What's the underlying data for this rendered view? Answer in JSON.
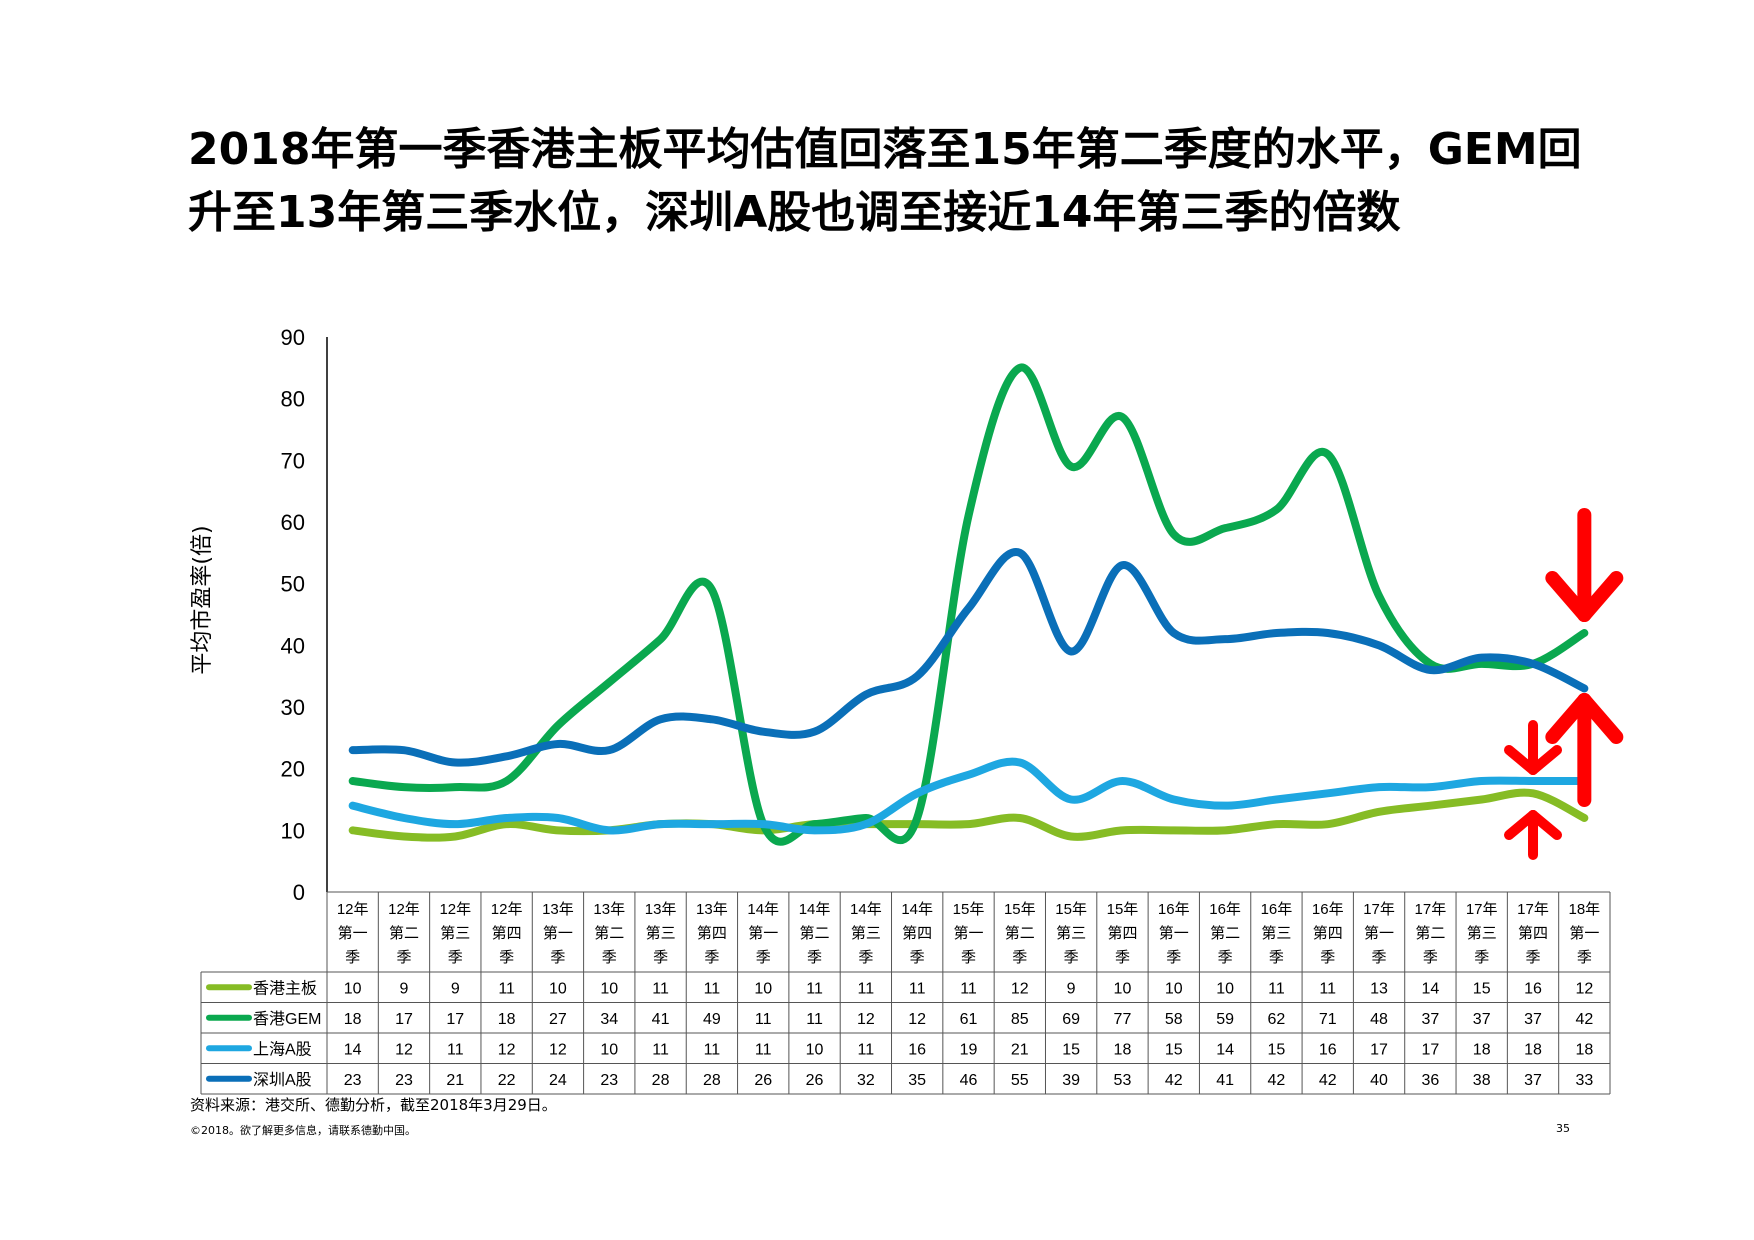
{
  "title": "2018年第一季香港主板平均估值回落至15年第二季度的水平，GEM回升至13年第三季水位，深圳A股也调至接近14年第三季的倍数",
  "footer": {
    "source": "资料来源：港交所、德勤分析，截至2018年3月29日。",
    "copyright": "©2018。欲了解更多信息，请联系德勤中国。",
    "page": "35"
  },
  "chart_data": {
    "type": "line",
    "ylabel": "平均市盈率(倍)",
    "ylim": [
      0,
      90
    ],
    "yticks": [
      0,
      10,
      20,
      30,
      40,
      50,
      60,
      70,
      80,
      90
    ],
    "categories": [
      [
        "12年",
        "第一",
        "季"
      ],
      [
        "12年",
        "第二",
        "季"
      ],
      [
        "12年",
        "第三",
        "季"
      ],
      [
        "12年",
        "第四",
        "季"
      ],
      [
        "13年",
        "第一",
        "季"
      ],
      [
        "13年",
        "第二",
        "季"
      ],
      [
        "13年",
        "第三",
        "季"
      ],
      [
        "13年",
        "第四",
        "季"
      ],
      [
        "14年",
        "第一",
        "季"
      ],
      [
        "14年",
        "第二",
        "季"
      ],
      [
        "14年",
        "第三",
        "季"
      ],
      [
        "14年",
        "第四",
        "季"
      ],
      [
        "15年",
        "第一",
        "季"
      ],
      [
        "15年",
        "第二",
        "季"
      ],
      [
        "15年",
        "第三",
        "季"
      ],
      [
        "15年",
        "第四",
        "季"
      ],
      [
        "16年",
        "第一",
        "季"
      ],
      [
        "16年",
        "第二",
        "季"
      ],
      [
        "16年",
        "第三",
        "季"
      ],
      [
        "16年",
        "第四",
        "季"
      ],
      [
        "17年",
        "第一",
        "季"
      ],
      [
        "17年",
        "第二",
        "季"
      ],
      [
        "17年",
        "第三",
        "季"
      ],
      [
        "17年",
        "第四",
        "季"
      ],
      [
        "18年",
        "第一",
        "季"
      ]
    ],
    "series": [
      {
        "name": "香港主板",
        "color": "#86bc25",
        "values": [
          10,
          9,
          9,
          11,
          10,
          10,
          11,
          11,
          10,
          11,
          11,
          11,
          11,
          12,
          9,
          10,
          10,
          10,
          11,
          11,
          13,
          14,
          15,
          16,
          12
        ]
      },
      {
        "name": "香港GEM",
        "color": "#0aa84f",
        "values": [
          18,
          17,
          17,
          18,
          27,
          34,
          41,
          49,
          11,
          11,
          12,
          12,
          61,
          85,
          69,
          77,
          58,
          59,
          62,
          71,
          48,
          37,
          37,
          37,
          42
        ]
      },
      {
        "name": "上海A股",
        "color": "#1ea7e1",
        "values": [
          14,
          12,
          11,
          12,
          12,
          10,
          11,
          11,
          11,
          10,
          11,
          16,
          19,
          21,
          15,
          18,
          15,
          14,
          15,
          16,
          17,
          17,
          18,
          18,
          18
        ]
      },
      {
        "name": "深圳A股",
        "color": "#0a6fb8",
        "values": [
          23,
          23,
          21,
          22,
          24,
          23,
          28,
          28,
          26,
          26,
          32,
          35,
          46,
          55,
          39,
          53,
          42,
          41,
          42,
          42,
          40,
          36,
          38,
          37,
          33
        ]
      }
    ],
    "annotations": "red arrows at the last quarter",
    "grid": false
  }
}
